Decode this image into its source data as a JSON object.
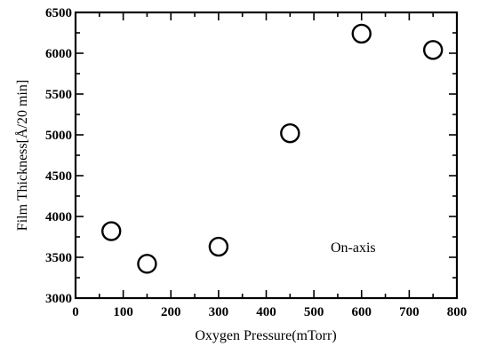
{
  "chart_data": {
    "type": "scatter",
    "title": "",
    "xlabel": "Oxygen Pressure(mTorr)",
    "ylabel": "Film Thickness[Å/20 min]",
    "xlim": [
      0,
      800
    ],
    "ylim": [
      3000,
      6500
    ],
    "xticks": [
      0,
      100,
      200,
      300,
      400,
      500,
      600,
      700,
      800
    ],
    "yticks": [
      3000,
      3500,
      4000,
      4500,
      5000,
      5500,
      6000,
      6500
    ],
    "grid": false,
    "marker": "open-circle",
    "annotation": "On-axis",
    "series": [
      {
        "x": [
          75,
          150,
          300,
          450,
          600,
          750
        ],
        "y": [
          3820,
          3420,
          3630,
          5020,
          6240,
          6040
        ]
      }
    ],
    "colors": {
      "marker": "#000000",
      "axis": "#000000"
    }
  }
}
